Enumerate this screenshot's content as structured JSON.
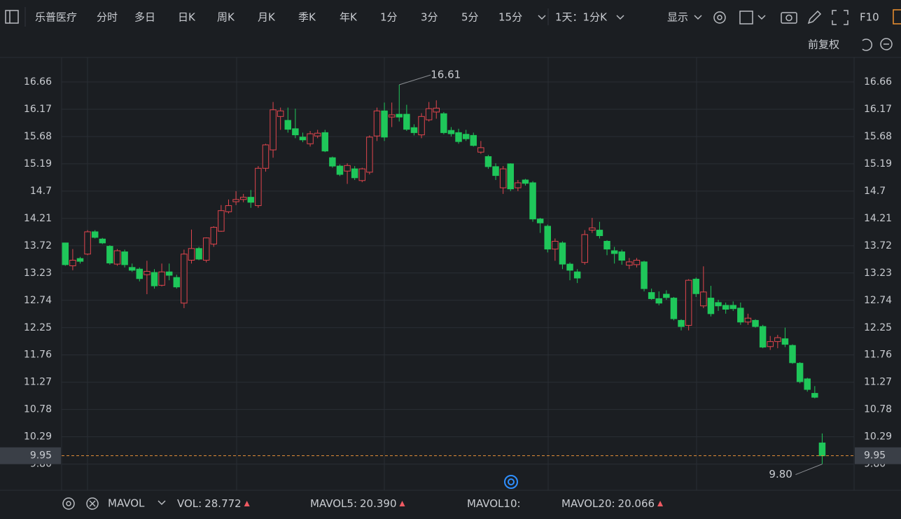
{
  "toolbar": {
    "stock_name": "乐普医疗",
    "periods": [
      "分时",
      "多日",
      "日K",
      "周K",
      "月K",
      "季K",
      "年K",
      "1分",
      "3分",
      "5分",
      "15分"
    ],
    "active_period": "日K",
    "multi_period": "1天：1分K",
    "display": "显示",
    "f10": "F10",
    "adjust": "前复权"
  },
  "chart_data": {
    "type": "candlestick",
    "ylim": [
      9.33,
      17.1
    ],
    "yticks": [
      16.66,
      16.17,
      15.68,
      15.19,
      14.7,
      14.21,
      13.72,
      13.23,
      12.74,
      12.25,
      11.76,
      11.27,
      10.78,
      10.29,
      {
        "value": 9.8,
        "label": "9.80"
      }
    ],
    "grid": true,
    "up_color": "#e0454d",
    "down_color": "#1fc75a",
    "open": [
      13.77,
      13.36,
      13.49,
      13.57,
      13.97,
      13.84,
      13.71,
      13.39,
      13.61,
      13.33,
      13.3,
      13.2,
      13.24,
      13.01,
      13.25,
      13.15,
      12.69,
      13.46,
      13.67,
      13.46,
      13.75,
      13.98,
      14.33,
      14.51,
      14.55,
      14.59,
      14.44,
      15.11,
      15.44,
      16.04,
      15.97,
      15.82,
      15.67,
      15.55,
      15.69,
      15.75,
      15.3,
      15.15,
      15.06,
      15.1,
      14.89,
      15.04,
      15.69,
      16.14,
      16.03,
      16.08,
      16.08,
      15.84,
      15.71,
      15.98,
      16.12,
      16.09,
      15.79,
      15.75,
      15.72,
      15.7,
      15.4,
      15.32,
      15.14,
      14.76,
      15.19,
      14.76,
      14.9,
      14.85,
      14.2,
      14.07,
      13.66,
      13.77,
      13.39,
      13.25,
      13.42,
      14.0,
      14.0,
      13.8,
      13.63,
      13.61,
      13.37,
      13.38,
      13.43,
      12.88,
      12.77,
      12.85,
      12.78,
      12.38,
      12.29,
      13.12,
      12.64,
      12.78,
      12.7,
      12.65,
      12.65,
      12.6,
      12.35,
      12.38,
      12.27,
      11.91,
      12.0,
      12.05,
      11.93,
      11.61,
      11.33,
      11.07,
      10.18
    ],
    "high": [
      13.77,
      13.66,
      13.52,
      14.0,
      14.0,
      13.86,
      13.73,
      13.66,
      13.65,
      13.4,
      13.33,
      13.45,
      13.3,
      13.4,
      13.4,
      13.2,
      13.65,
      14.01,
      13.7,
      13.87,
      14.07,
      14.45,
      14.55,
      14.7,
      14.65,
      14.72,
      15.15,
      15.55,
      16.3,
      16.2,
      16.2,
      16.18,
      15.75,
      15.78,
      15.8,
      15.8,
      15.32,
      15.18,
      15.2,
      15.15,
      15.12,
      15.7,
      16.2,
      16.29,
      16.29,
      16.61,
      16.25,
      15.9,
      16.1,
      16.3,
      16.33,
      16.12,
      15.85,
      15.82,
      15.8,
      15.75,
      15.6,
      15.35,
      15.2,
      15.15,
      15.2,
      14.9,
      14.92,
      14.88,
      14.22,
      14.1,
      13.85,
      13.8,
      13.42,
      13.3,
      14.0,
      14.22,
      14.15,
      13.82,
      13.7,
      13.65,
      13.5,
      13.5,
      13.45,
      12.95,
      12.9,
      12.92,
      12.8,
      12.4,
      13.12,
      13.15,
      13.35,
      13.0,
      12.75,
      12.7,
      12.72,
      12.7,
      12.5,
      12.4,
      12.3,
      12.1,
      12.12,
      12.25,
      11.95,
      11.63,
      11.35,
      11.2,
      10.35
    ],
    "low": [
      13.36,
      13.28,
      13.4,
      13.55,
      13.85,
      13.75,
      13.38,
      13.36,
      13.33,
      13.25,
      13.08,
      12.85,
      12.95,
      12.99,
      13.1,
      12.95,
      12.6,
      13.4,
      13.46,
      13.42,
      13.7,
      13.97,
      14.3,
      14.45,
      14.5,
      14.4,
      14.4,
      15.05,
      15.3,
      15.8,
      15.75,
      15.65,
      15.58,
      15.5,
      15.65,
      15.4,
      15.12,
      14.97,
      14.83,
      14.9,
      14.86,
      15.0,
      15.6,
      15.6,
      15.85,
      15.95,
      15.78,
      15.7,
      15.65,
      15.95,
      16.0,
      15.72,
      15.68,
      15.55,
      15.6,
      15.5,
      15.37,
      15.1,
      14.9,
      14.65,
      14.7,
      14.7,
      14.8,
      14.15,
      13.95,
      13.6,
      13.45,
      13.3,
      13.1,
      13.05,
      13.38,
      13.95,
      13.85,
      13.55,
      13.4,
      13.38,
      13.3,
      13.33,
      12.9,
      12.75,
      12.65,
      12.75,
      12.38,
      12.2,
      12.2,
      12.8,
      12.6,
      12.45,
      12.55,
      12.5,
      12.55,
      12.3,
      12.3,
      12.25,
      11.88,
      11.85,
      11.88,
      11.9,
      11.6,
      11.25,
      11.1,
      10.98,
      9.8
    ],
    "close": [
      13.38,
      13.46,
      13.44,
      13.97,
      13.87,
      13.77,
      13.41,
      13.63,
      13.38,
      13.28,
      13.13,
      13.26,
      13.0,
      13.25,
      13.19,
      12.98,
      13.57,
      13.67,
      13.48,
      13.86,
      14.05,
      14.35,
      14.44,
      14.55,
      14.59,
      14.5,
      15.11,
      15.53,
      16.16,
      16.14,
      15.81,
      15.71,
      15.62,
      15.73,
      15.74,
      15.42,
      15.15,
      15.0,
      15.16,
      14.94,
      15.1,
      15.67,
      16.14,
      15.67,
      16.07,
      16.03,
      15.81,
      15.75,
      16.04,
      16.18,
      16.19,
      15.75,
      15.73,
      15.59,
      15.64,
      15.52,
      15.48,
      15.14,
      14.98,
      15.1,
      14.74,
      14.85,
      14.84,
      14.2,
      14.13,
      13.66,
      13.8,
      13.39,
      13.28,
      13.14,
      13.92,
      14.04,
      13.9,
      13.66,
      13.58,
      13.46,
      13.43,
      13.46,
      12.95,
      12.77,
      12.69,
      12.79,
      12.41,
      12.27,
      13.1,
      12.86,
      12.89,
      12.5,
      12.64,
      12.58,
      12.59,
      12.35,
      12.42,
      12.27,
      11.9,
      12.0,
      12.07,
      11.95,
      11.62,
      11.28,
      11.14,
      11.0,
      9.95
    ],
    "high_label": 16.61,
    "low_label": {
      "value": 9.8,
      "label": "9.80"
    },
    "last_price": 9.95,
    "last_price_color": "#e8913a"
  },
  "indicator_bar": {
    "name": "MAVOL",
    "items": [
      {
        "label": "VOL:",
        "value": "28.772",
        "color": "#ef5a62"
      },
      {
        "label": "MAVOL5:",
        "value": "20.390",
        "color": "#f0912f"
      },
      {
        "label": "MAVOL10:",
        "value": "",
        "color": "#3e7590"
      },
      {
        "label": "MAVOL20:",
        "value": "20.066",
        "color": "#d46cdc"
      }
    ]
  }
}
